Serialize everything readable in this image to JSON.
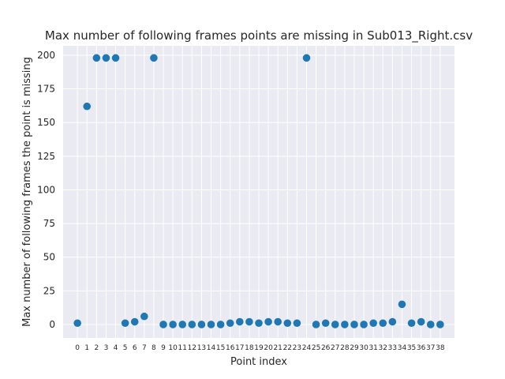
{
  "chart_data": {
    "type": "scatter",
    "title": "Max number of following frames points are missing in Sub013_Right.csv",
    "xlabel": "Point index",
    "ylabel": "Max number of following frames the point is missing",
    "x": [
      0,
      1,
      2,
      3,
      4,
      5,
      6,
      7,
      8,
      9,
      10,
      11,
      12,
      13,
      14,
      15,
      16,
      17,
      18,
      19,
      20,
      21,
      22,
      23,
      24,
      25,
      26,
      27,
      28,
      29,
      30,
      31,
      32,
      33,
      34,
      35,
      36,
      37,
      38
    ],
    "y": [
      1,
      162,
      198,
      198,
      198,
      1,
      2,
      6,
      198,
      0,
      0,
      0,
      0,
      0,
      0,
      0,
      1,
      2,
      2,
      1,
      2,
      2,
      1,
      1,
      198,
      0,
      1,
      0,
      0,
      0,
      0,
      1,
      1,
      2,
      15,
      1,
      2,
      0,
      0
    ],
    "x_tick_labels": [
      "0",
      "1",
      "2",
      "3",
      "4",
      "5",
      "6",
      "7",
      "8",
      "9",
      "10",
      "11",
      "12",
      "13",
      "14",
      "15",
      "16",
      "17",
      "18",
      "19",
      "20",
      "21",
      "22",
      "23",
      "24",
      "25",
      "26",
      "27",
      "28",
      "29",
      "30",
      "31",
      "32",
      "33",
      "34",
      "35",
      "36",
      "37",
      "38"
    ],
    "y_ticks": [
      0,
      25,
      50,
      75,
      100,
      125,
      150,
      175,
      200
    ],
    "xlim": [
      -1.5,
      39.5
    ],
    "ylim": [
      -10,
      207
    ],
    "grid": true,
    "colors": {
      "marker": "#1f77b4",
      "plot_background": "#eaeaf2",
      "grid": "#ffffff"
    }
  }
}
